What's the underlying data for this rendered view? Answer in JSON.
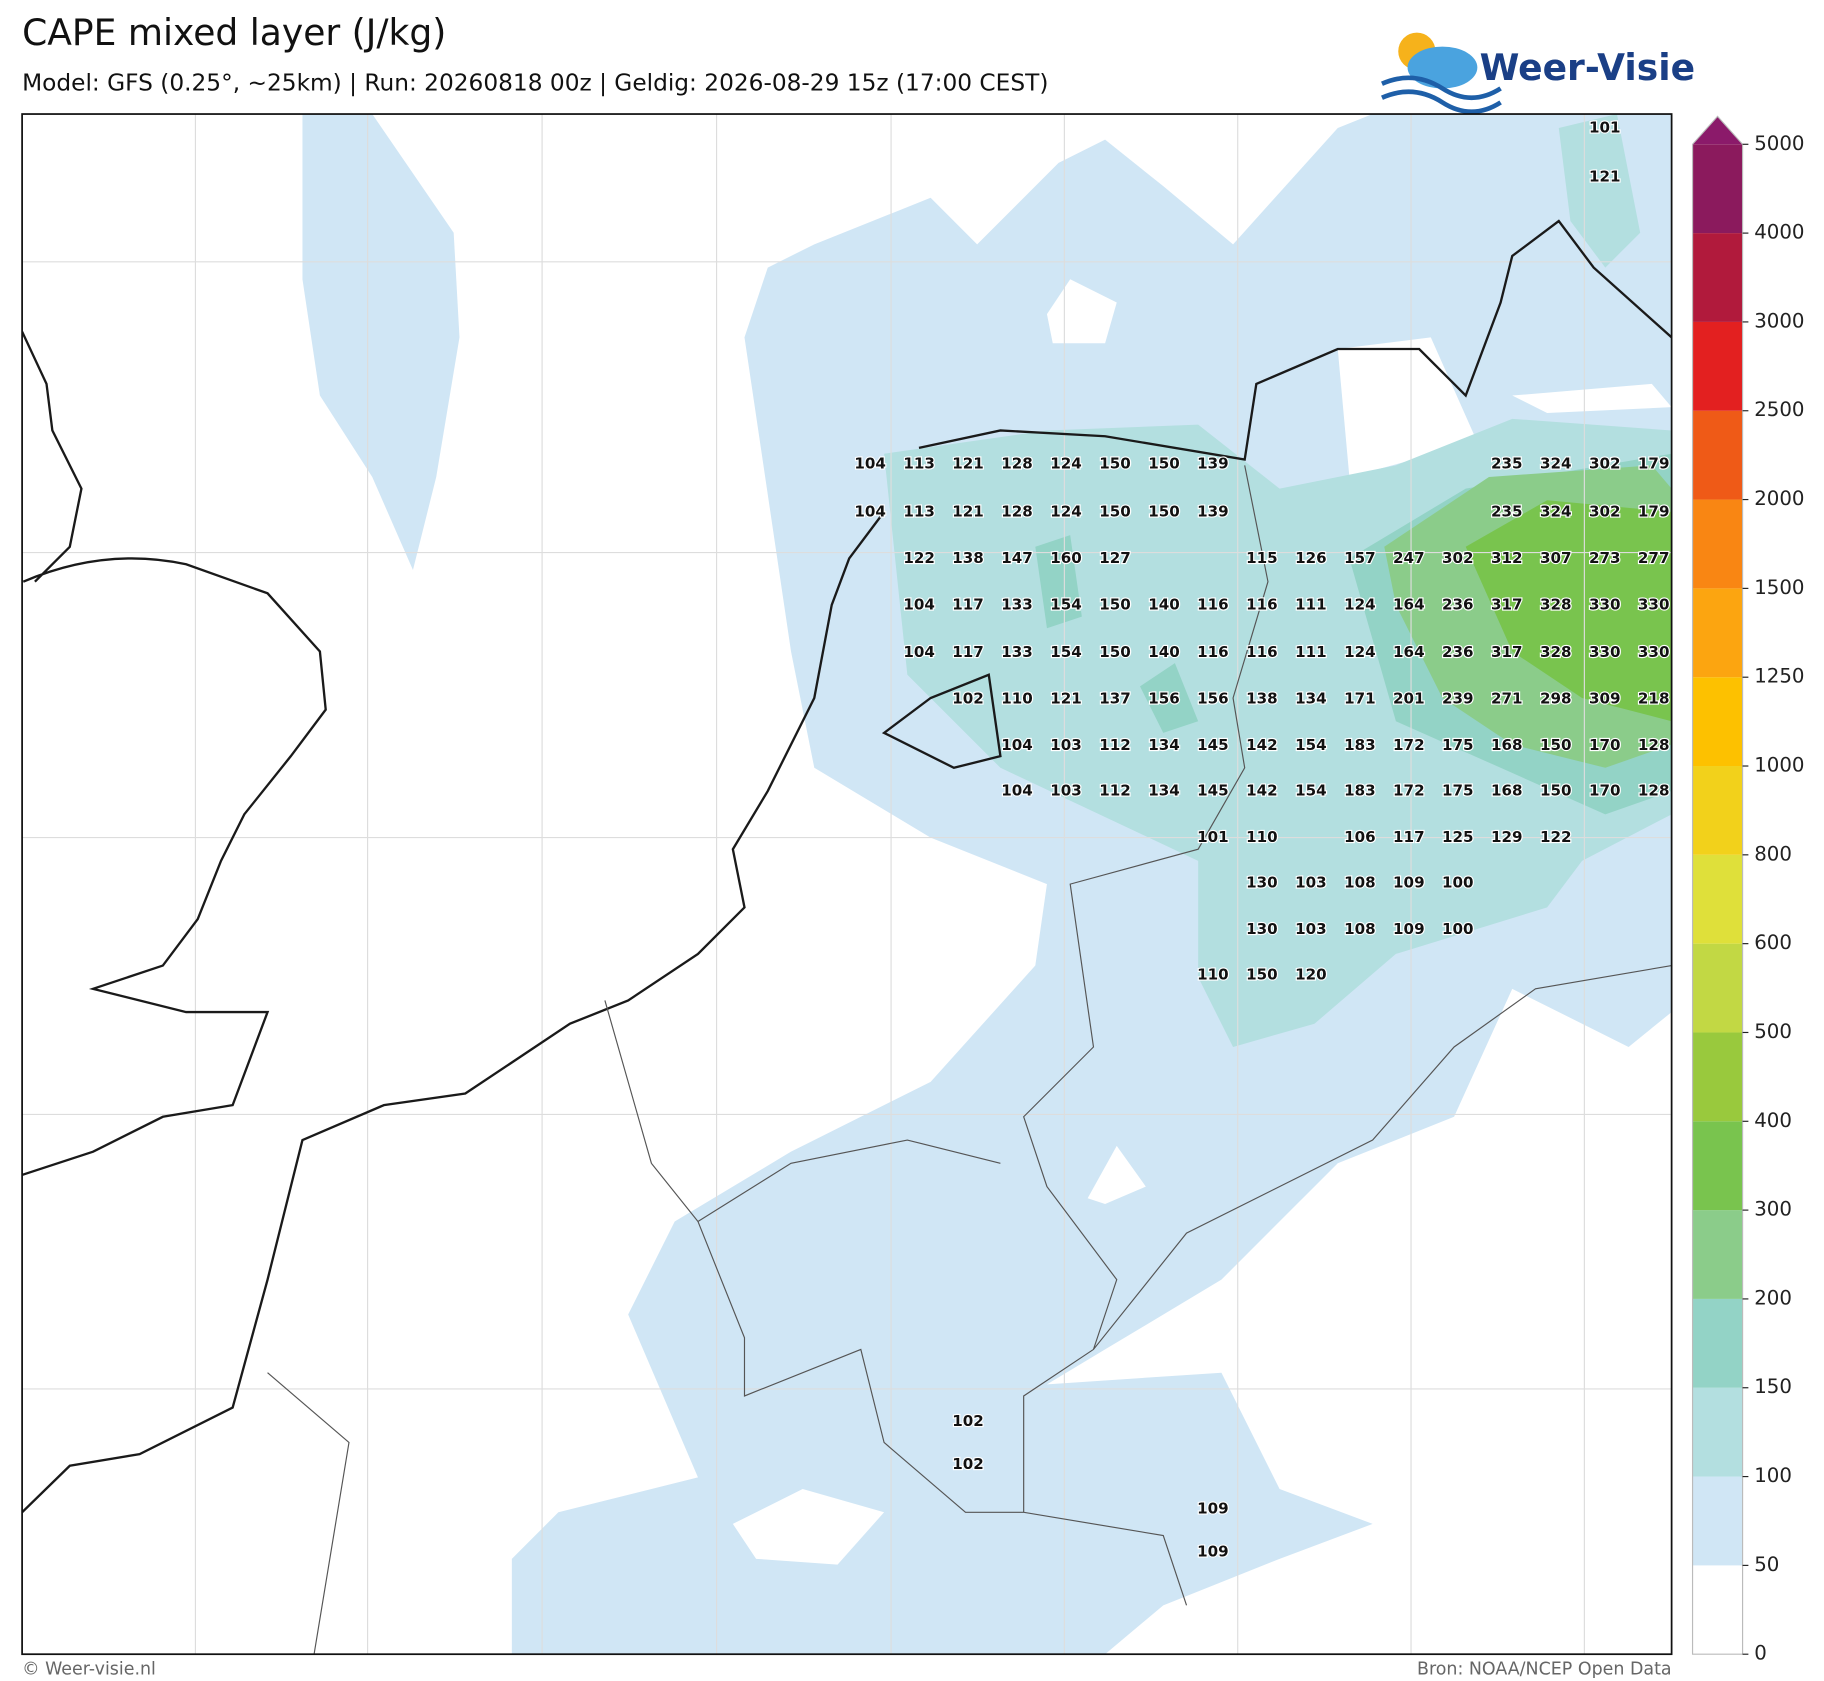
{
  "header": {
    "title": "CAPE mixed layer (J/kg)",
    "subtitle": "Model: GFS (0.25°, ~25km)  |  Run: 20260818 00z  |  Geldig: 2026-08-29 15z (17:00 CEST)",
    "logo": "Weer-Visie"
  },
  "map": {
    "value_rows": [
      [
        null,
        null,
        null,
        null,
        null,
        null,
        null,
        null,
        null,
        null,
        null,
        null,
        null,
        null,
        null,
        101,
        null
      ],
      [
        null,
        null,
        null,
        null,
        null,
        null,
        null,
        null,
        null,
        null,
        null,
        null,
        null,
        null,
        null,
        121,
        null
      ],
      [
        104,
        113,
        121,
        128,
        124,
        150,
        150,
        139,
        null,
        null,
        null,
        null,
        null,
        235,
        324,
        302,
        179
      ],
      [
        104,
        113,
        121,
        128,
        124,
        150,
        150,
        139,
        null,
        null,
        null,
        null,
        null,
        235,
        324,
        302,
        179
      ],
      [
        null,
        122,
        138,
        147,
        160,
        127,
        null,
        null,
        115,
        126,
        157,
        247,
        302,
        312,
        307,
        273,
        277
      ],
      [
        null,
        104,
        117,
        133,
        154,
        150,
        140,
        116,
        116,
        111,
        124,
        164,
        236,
        317,
        328,
        330,
        330
      ],
      [
        null,
        104,
        117,
        133,
        154,
        150,
        140,
        116,
        116,
        111,
        124,
        164,
        236,
        317,
        328,
        330,
        330
      ],
      [
        null,
        null,
        102,
        110,
        121,
        137,
        156,
        156,
        138,
        134,
        171,
        201,
        239,
        271,
        298,
        309,
        218
      ],
      [
        null,
        null,
        null,
        104,
        103,
        112,
        134,
        145,
        142,
        154,
        183,
        172,
        175,
        168,
        150,
        170,
        128
      ],
      [
        null,
        null,
        null,
        104,
        103,
        112,
        134,
        145,
        142,
        154,
        183,
        172,
        175,
        168,
        150,
        170,
        128
      ],
      [
        null,
        null,
        null,
        null,
        null,
        null,
        null,
        101,
        110,
        null,
        106,
        117,
        125,
        129,
        122,
        null,
        null
      ],
      [
        null,
        null,
        null,
        null,
        null,
        null,
        null,
        null,
        130,
        103,
        108,
        109,
        100,
        null,
        null,
        null,
        null
      ],
      [
        null,
        null,
        null,
        null,
        null,
        null,
        null,
        null,
        130,
        103,
        108,
        109,
        100,
        null,
        null,
        null,
        null
      ],
      [
        null,
        null,
        null,
        null,
        null,
        null,
        null,
        110,
        150,
        120,
        null,
        null,
        null,
        null,
        null,
        null,
        null
      ],
      [
        null,
        null,
        102,
        null,
        null,
        null,
        null,
        null,
        null,
        null,
        null,
        null,
        null,
        null,
        null,
        null,
        null
      ],
      [
        null,
        null,
        102,
        null,
        null,
        null,
        null,
        null,
        null,
        null,
        null,
        null,
        null,
        null,
        null,
        null,
        null
      ],
      [
        null,
        null,
        null,
        null,
        null,
        null,
        null,
        109,
        null,
        null,
        null,
        null,
        null,
        null,
        null,
        null,
        null
      ],
      [
        null,
        null,
        null,
        null,
        null,
        null,
        null,
        109,
        null,
        null,
        null,
        null,
        null,
        null,
        null,
        null,
        null
      ]
    ]
  },
  "colorbar": {
    "levels": [
      0,
      50,
      100,
      150,
      200,
      300,
      400,
      500,
      600,
      800,
      1000,
      1250,
      1500,
      2000,
      2500,
      3000,
      4000,
      5000
    ],
    "colors": [
      "#ffffff",
      "#d0e6f5",
      "#b3dfe0",
      "#93d3c6",
      "#8bcc8a",
      "#79c44e",
      "#99c93d",
      "#c2d844",
      "#dfe03a",
      "#f2d11b",
      "#fdc100",
      "#fca510",
      "#f98613",
      "#ef5a17",
      "#e32020",
      "#b11a3c",
      "#8b1a5d"
    ],
    "extend_color": "#8b1a6a"
  },
  "footer": {
    "left": "© Weer-visie.nl",
    "right": "Bron: NOAA/NCEP Open Data"
  }
}
